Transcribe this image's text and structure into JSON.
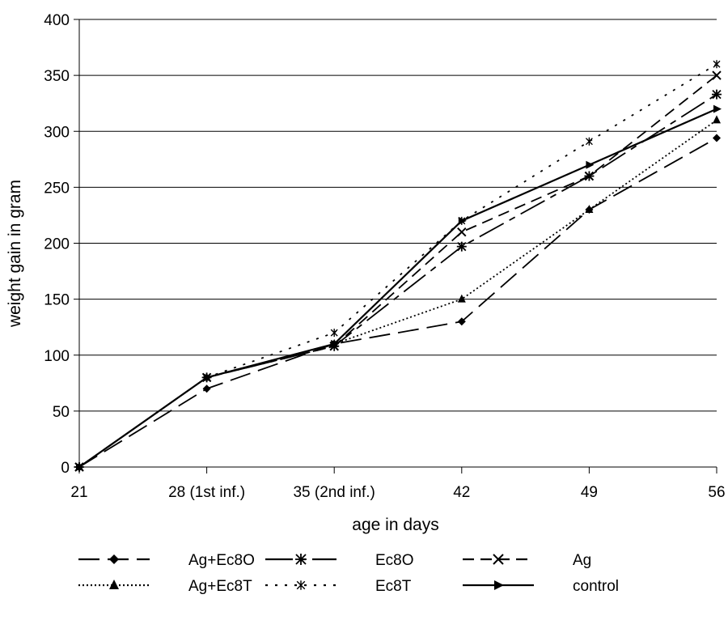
{
  "chart_data": {
    "type": "line",
    "xlabel": "age in days",
    "ylabel": "weight gain in gram",
    "categories": [
      "21",
      "28 (1st inf.)",
      "35 (2nd inf.)",
      "42",
      "49",
      "56"
    ],
    "ylim": [
      0,
      400
    ],
    "yticks": [
      0,
      50,
      100,
      150,
      200,
      250,
      300,
      350,
      400
    ],
    "grid": "horizontal",
    "legend_position": "bottom",
    "series": [
      {
        "name": "Ag+Ec8O",
        "values": [
          0,
          70,
          110,
          130,
          230,
          294
        ],
        "marker": "diamond",
        "dash": "long-dash"
      },
      {
        "name": "Ec8O",
        "values": [
          0,
          80,
          108,
          197,
          260,
          333
        ],
        "marker": "asterisk",
        "dash": "long-dash-short"
      },
      {
        "name": "Ag",
        "values": [
          0,
          80,
          108,
          210,
          260,
          350
        ],
        "marker": "x",
        "dash": "dash"
      },
      {
        "name": "Ag+Ec8T",
        "values": [
          0,
          80,
          110,
          150,
          230,
          310
        ],
        "marker": "triangle",
        "dash": "dotted"
      },
      {
        "name": "Ec8T",
        "values": [
          0,
          80,
          120,
          220,
          291,
          360
        ],
        "marker": "star",
        "dash": "sparse-dotted"
      },
      {
        "name": "control",
        "values": [
          0,
          80,
          110,
          220,
          270,
          320
        ],
        "marker": "right-triangle",
        "dash": "solid"
      }
    ]
  }
}
